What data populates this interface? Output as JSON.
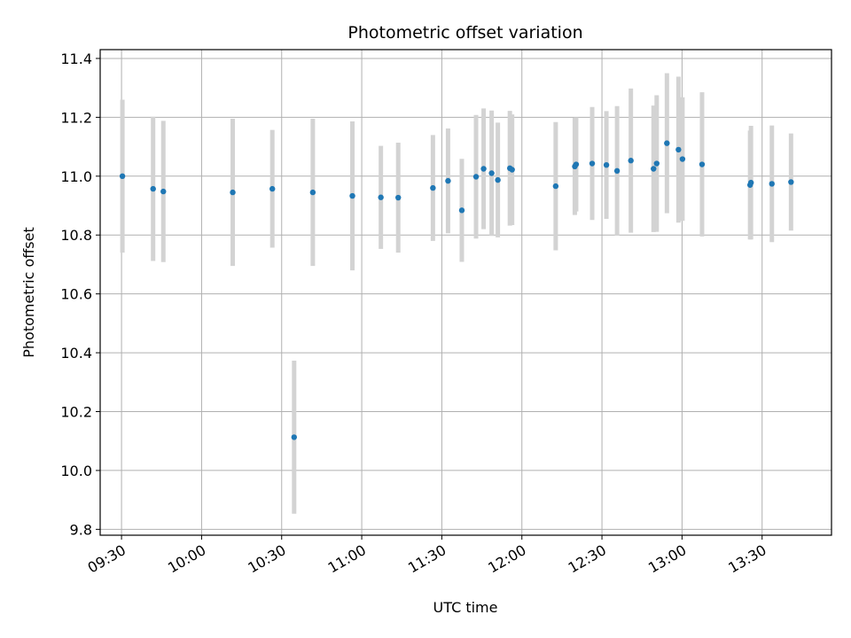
{
  "chart_data": {
    "type": "scatter",
    "title": "Photometric offset variation",
    "xlabel": "UTC time",
    "ylabel": "Photometric offset",
    "x_type": "time",
    "xlim": [
      "09:22",
      "13:56"
    ],
    "ylim": [
      9.78,
      11.43
    ],
    "x_ticks": [
      "09:30",
      "10:00",
      "10:30",
      "11:00",
      "11:30",
      "12:00",
      "12:30",
      "13:00",
      "13:30"
    ],
    "y_ticks": [
      9.8,
      10.0,
      10.2,
      10.4,
      10.6,
      10.8,
      11.0,
      11.2,
      11.4
    ],
    "grid": true,
    "colors": {
      "point": "#1f77b4",
      "errorbar": "#d3d3d3",
      "grid": "#b0b0b0"
    },
    "points": [
      {
        "x": "09:30:20",
        "y": 11.0,
        "err": 0.26
      },
      {
        "x": "09:41:50",
        "y": 10.957,
        "err": 0.245
      },
      {
        "x": "09:45:40",
        "y": 10.948,
        "err": 0.24
      },
      {
        "x": "10:11:40",
        "y": 10.945,
        "err": 0.25
      },
      {
        "x": "10:26:30",
        "y": 10.957,
        "err": 0.2
      },
      {
        "x": "10:34:40",
        "y": 10.113,
        "err": 0.26
      },
      {
        "x": "10:41:40",
        "y": 10.945,
        "err": 0.25
      },
      {
        "x": "10:56:30",
        "y": 10.933,
        "err": 0.253
      },
      {
        "x": "11:07:10",
        "y": 10.928,
        "err": 0.175
      },
      {
        "x": "11:13:40",
        "y": 10.927,
        "err": 0.187
      },
      {
        "x": "11:26:40",
        "y": 10.96,
        "err": 0.18
      },
      {
        "x": "11:32:20",
        "y": 10.984,
        "err": 0.178
      },
      {
        "x": "11:37:30",
        "y": 10.884,
        "err": 0.175
      },
      {
        "x": "11:42:50",
        "y": 10.998,
        "err": 0.21
      },
      {
        "x": "11:45:40",
        "y": 11.025,
        "err": 0.205
      },
      {
        "x": "11:48:40",
        "y": 11.01,
        "err": 0.213
      },
      {
        "x": "11:51:00",
        "y": 10.987,
        "err": 0.195
      },
      {
        "x": "11:55:30",
        "y": 11.027,
        "err": 0.195
      },
      {
        "x": "11:56:20",
        "y": 11.022,
        "err": 0.188
      },
      {
        "x": "12:12:40",
        "y": 10.966,
        "err": 0.218
      },
      {
        "x": "12:19:50",
        "y": 11.033,
        "err": 0.165
      },
      {
        "x": "12:20:20",
        "y": 11.04,
        "err": 0.16
      },
      {
        "x": "12:26:20",
        "y": 11.043,
        "err": 0.192
      },
      {
        "x": "12:31:40",
        "y": 11.038,
        "err": 0.183
      },
      {
        "x": "12:35:40",
        "y": 11.018,
        "err": 0.22
      },
      {
        "x": "12:40:50",
        "y": 11.053,
        "err": 0.245
      },
      {
        "x": "12:49:20",
        "y": 11.025,
        "err": 0.215
      },
      {
        "x": "12:50:30",
        "y": 11.043,
        "err": 0.232
      },
      {
        "x": "12:54:20",
        "y": 11.112,
        "err": 0.238
      },
      {
        "x": "12:58:40",
        "y": 11.09,
        "err": 0.248
      },
      {
        "x": "13:00:10",
        "y": 11.058,
        "err": 0.21
      },
      {
        "x": "13:07:30",
        "y": 11.04,
        "err": 0.245
      },
      {
        "x": "13:25:30",
        "y": 10.97,
        "err": 0.185
      },
      {
        "x": "13:25:50",
        "y": 10.978,
        "err": 0.193
      },
      {
        "x": "13:33:40",
        "y": 10.974,
        "err": 0.198
      },
      {
        "x": "13:40:50",
        "y": 10.98,
        "err": 0.165
      }
    ]
  }
}
